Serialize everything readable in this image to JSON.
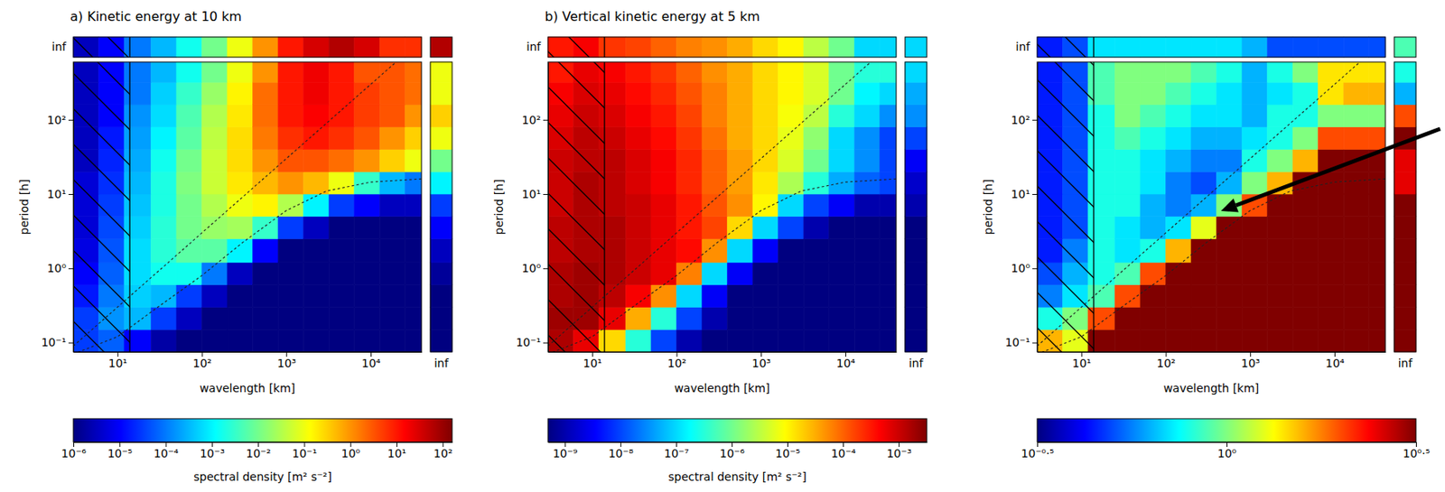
{
  "chart_data": [
    {
      "type": "heatmap",
      "title": "a) Kinetic energy at 10 km",
      "xlabel": "wavelength [km]",
      "ylabel": "period [h]",
      "log": true,
      "xlim": [
        3,
        40000
      ],
      "ylim": [
        0.075,
        600
      ],
      "xticks": [
        {
          "value": 10,
          "label": "10¹"
        },
        {
          "value": 100,
          "label": "10²"
        },
        {
          "value": 1000,
          "label": "10³"
        },
        {
          "value": 10000,
          "label": "10⁴"
        }
      ],
      "yticks": [
        {
          "value": 0.1,
          "label": "10⁻¹"
        },
        {
          "value": 1,
          "label": "10⁰"
        },
        {
          "value": 10,
          "label": "10¹"
        },
        {
          "value": 100,
          "label": "10²"
        }
      ],
      "xbins": [
        3,
        6,
        12,
        25,
        50,
        100,
        200,
        400,
        800,
        1600,
        3200,
        6400,
        12800,
        25600,
        40000
      ],
      "ybins": [
        0.075,
        0.15,
        0.3,
        0.6,
        1.2,
        2.5,
        5,
        10,
        20,
        40,
        80,
        160,
        320,
        600
      ],
      "values": [
        [
          3.2e-05,
          6.3e-05,
          1e-05,
          2e-06,
          1e-06,
          1e-06,
          1e-06,
          1e-06,
          1e-06,
          1e-06,
          1e-06,
          1e-06,
          1e-06,
          1e-06
        ],
        [
          3.2e-05,
          0.00016,
          0.00032,
          3.2e-05,
          3.2e-06,
          1e-06,
          1e-06,
          1e-06,
          1e-06,
          1e-06,
          1e-06,
          1e-06,
          1e-06,
          1e-06
        ],
        [
          1.6e-05,
          0.0001,
          0.0005,
          0.00032,
          3.2e-05,
          3.2e-06,
          1e-06,
          1e-06,
          1e-06,
          1e-06,
          1e-06,
          1e-06,
          1e-06,
          1e-06
        ],
        [
          1e-05,
          6.3e-05,
          0.00063,
          0.0016,
          0.0016,
          0.0001,
          3.2e-06,
          1e-06,
          1e-06,
          1e-06,
          1e-06,
          1e-06,
          1e-06,
          1e-06
        ],
        [
          6.3e-06,
          5e-05,
          0.00063,
          0.0025,
          0.0063,
          0.0063,
          0.001,
          1e-05,
          1e-06,
          1e-06,
          1e-06,
          1e-06,
          1e-06,
          1e-06
        ],
        [
          5e-06,
          4e-05,
          0.0005,
          0.0025,
          0.01,
          0.02,
          0.025,
          0.0032,
          3.2e-05,
          3.2e-06,
          1e-06,
          1e-06,
          1e-06,
          1e-06
        ],
        [
          5e-06,
          3.2e-05,
          0.0004,
          0.002,
          0.01,
          0.032,
          0.1,
          0.16,
          0.032,
          0.001,
          3.2e-05,
          1e-05,
          3.2e-06,
          3.2e-06
        ],
        [
          5e-06,
          2.5e-05,
          0.00032,
          0.002,
          0.0126,
          0.05,
          0.2,
          0.5,
          1,
          0.5,
          0.1,
          0.0032,
          0.00032,
          0.0001
        ],
        [
          3.2e-06,
          2e-05,
          0.00025,
          0.0016,
          0.01,
          0.05,
          0.25,
          1,
          3.2,
          3.2,
          2,
          1,
          0.32,
          0.1
        ],
        [
          3.2e-06,
          1.6e-05,
          0.0002,
          0.001,
          0.0063,
          0.04,
          0.25,
          1.6,
          6.3,
          10,
          6.3,
          3.2,
          1,
          0.32
        ],
        [
          3.2e-06,
          1e-05,
          0.00016,
          0.00063,
          0.005,
          0.032,
          0.2,
          2,
          10,
          16,
          10,
          5,
          3.2,
          1
        ],
        [
          3.2e-06,
          1e-05,
          0.0001,
          0.0005,
          0.0032,
          0.02,
          0.16,
          2,
          10,
          20,
          10,
          5,
          3.2,
          2
        ],
        [
          3.2e-06,
          1e-05,
          0.0001,
          0.00032,
          0.0016,
          0.01,
          0.1,
          1,
          10,
          20,
          10,
          3.2,
          3.2,
          2
        ]
      ],
      "inf_label": "inf",
      "inf_row": [
        3.2e-06,
        1e-05,
        0.0001,
        0.00032,
        0.0016,
        0.01,
        0.1,
        1,
        10,
        32,
        63,
        32,
        6.3,
        6.3
      ],
      "inf_column": [
        1e-06,
        1e-06,
        1e-06,
        1.6e-06,
        3.2e-06,
        1e-05,
        3.2e-05,
        0.001,
        0.01,
        0.1,
        0.32,
        0.1,
        0.1
      ],
      "inf_corner": 63,
      "cutoff_wavelength": 14,
      "lines": [
        {
          "x": [
            3,
            40000
          ],
          "y": [
            0.09,
            1200
          ],
          "line_style": "dashed"
        },
        {
          "x": [
            3,
            10,
            30,
            100,
            300,
            1000,
            3000,
            10000,
            40000
          ],
          "y": [
            0.07,
            0.12,
            0.3,
            0.8,
            2.2,
            6,
            11,
            14.5,
            16
          ],
          "line_style": "dashed"
        }
      ],
      "colorbar": {
        "range": [
          1e-06,
          160
        ],
        "ticks": [
          {
            "value": 1e-06,
            "label": "10⁻⁶"
          },
          {
            "value": 1e-05,
            "label": "10⁻⁵"
          },
          {
            "value": 0.0001,
            "label": "10⁻⁴"
          },
          {
            "value": 0.001,
            "label": "10⁻³"
          },
          {
            "value": 0.01,
            "label": "10⁻²"
          },
          {
            "value": 0.1,
            "label": "10⁻¹"
          },
          {
            "value": 1,
            "label": "10⁰"
          },
          {
            "value": 10,
            "label": "10¹"
          },
          {
            "value": 100,
            "label": "10²"
          }
        ],
        "label": "spectral density [m² s⁻²]"
      }
    },
    {
      "type": "heatmap",
      "title": "b) Vertical kinetic energy at 5 km",
      "xlabel": "wavelength [km]",
      "ylabel": "period [h]",
      "log": true,
      "xlim": [
        3,
        40000
      ],
      "ylim": [
        0.075,
        600
      ],
      "xticks": [
        {
          "value": 10,
          "label": "10¹"
        },
        {
          "value": 100,
          "label": "10²"
        },
        {
          "value": 1000,
          "label": "10³"
        },
        {
          "value": 10000,
          "label": "10⁴"
        }
      ],
      "yticks": [
        {
          "value": 0.1,
          "label": "10⁻¹"
        },
        {
          "value": 1,
          "label": "10⁰"
        },
        {
          "value": 10,
          "label": "10¹"
        },
        {
          "value": 100,
          "label": "10²"
        }
      ],
      "xbins": [
        3,
        6,
        12,
        25,
        50,
        100,
        200,
        400,
        800,
        1600,
        3200,
        6400,
        12800,
        25600,
        40000
      ],
      "ybins": [
        0.075,
        0.15,
        0.3,
        0.6,
        1.2,
        2.5,
        5,
        10,
        20,
        40,
        80,
        160,
        320,
        600
      ],
      "values": [
        [
          0.0016,
          0.00063,
          1.6e-05,
          3.2e-07,
          1e-08,
          1e-09,
          5e-10,
          5e-10,
          5e-10,
          5e-10,
          5e-10,
          5e-10,
          5e-10,
          5e-10
        ],
        [
          0.002,
          0.002,
          0.00063,
          3.2e-05,
          3.2e-07,
          1e-08,
          1e-09,
          5e-10,
          5e-10,
          5e-10,
          5e-10,
          5e-10,
          5e-10,
          5e-10
        ],
        [
          0.0016,
          0.002,
          0.00126,
          0.0005,
          5e-05,
          1e-07,
          3.2e-09,
          5e-10,
          5e-10,
          5e-10,
          5e-10,
          5e-10,
          5e-10,
          5e-10
        ],
        [
          0.0016,
          0.002,
          0.0016,
          0.001,
          0.00063,
          6.3e-05,
          1e-07,
          3.2e-09,
          5e-10,
          5e-10,
          5e-10,
          5e-10,
          5e-10,
          5e-10
        ],
        [
          0.00126,
          0.0016,
          0.0016,
          0.001,
          0.00063,
          0.0004,
          5e-05,
          1e-07,
          3.2e-09,
          5e-10,
          5e-10,
          5e-10,
          5e-10,
          5e-10
        ],
        [
          0.00126,
          0.0016,
          0.0016,
          0.001,
          0.00063,
          0.00032,
          0.00016,
          1.6e-05,
          1e-07,
          1e-08,
          1e-09,
          5e-10,
          5e-10,
          5e-10
        ],
        [
          0.001,
          0.0016,
          0.00126,
          0.001,
          0.00063,
          0.00032,
          0.000126,
          5e-05,
          1e-05,
          1e-07,
          1e-08,
          3.2e-09,
          1e-09,
          1e-09
        ],
        [
          0.001,
          0.0016,
          0.00126,
          0.0008,
          0.0005,
          0.00025,
          0.0001,
          4e-05,
          1.26e-05,
          2.5e-06,
          3.2e-07,
          5e-08,
          1.6e-08,
          1e-08
        ],
        [
          0.001,
          0.00126,
          0.00126,
          0.0008,
          0.0005,
          0.00025,
          0.0001,
          4e-05,
          1.6e-05,
          5e-06,
          1e-06,
          1e-07,
          3.2e-08,
          1e-08
        ],
        [
          0.0008,
          0.00126,
          0.001,
          0.00063,
          0.0004,
          0.0002,
          8e-05,
          3.2e-05,
          1.6e-05,
          6.3e-06,
          1.6e-06,
          1e-07,
          3.2e-08,
          1e-08
        ],
        [
          0.00063,
          0.001,
          0.0008,
          0.0005,
          0.00032,
          0.00016,
          6.3e-05,
          3.2e-05,
          1.6e-05,
          8e-06,
          3.2e-06,
          3.2e-07,
          1e-07,
          3.2e-08
        ],
        [
          0.0005,
          0.0008,
          0.00063,
          0.0004,
          0.00025,
          0.000126,
          6.3e-05,
          3.2e-05,
          1.6e-05,
          1e-05,
          5e-06,
          1e-06,
          1.6e-07,
          1e-07
        ],
        [
          0.00032,
          0.00063,
          0.0005,
          0.00032,
          0.0002,
          0.0001,
          5e-05,
          3.2e-05,
          1.6e-05,
          1e-05,
          5e-06,
          1e-06,
          3.2e-07,
          3.2e-07
        ]
      ],
      "inf_label": "inf",
      "inf_row": [
        0.00032,
        0.0005,
        0.0002,
        0.00016,
        0.0001,
        6.3e-05,
        5e-05,
        3.2e-05,
        1.6e-05,
        1e-05,
        3.2e-06,
        1e-06,
        1e-07,
        1e-07
      ],
      "inf_column": [
        5e-10,
        5e-10,
        5e-10,
        5e-10,
        5e-10,
        5e-10,
        1e-09,
        1.6e-09,
        3.2e-09,
        1e-08,
        3.2e-08,
        5e-08,
        1e-07
      ],
      "inf_corner": 1e-07,
      "cutoff_wavelength": 14,
      "lines": [
        {
          "x": [
            3,
            40000
          ],
          "y": [
            0.09,
            1200
          ],
          "line_style": "dashed"
        },
        {
          "x": [
            3,
            10,
            30,
            100,
            300,
            1000,
            3000,
            10000,
            40000
          ],
          "y": [
            0.07,
            0.12,
            0.3,
            0.8,
            2.2,
            6,
            11,
            14.5,
            16
          ],
          "line_style": "dashed"
        }
      ],
      "colorbar": {
        "range": [
          5e-10,
          0.0032
        ],
        "ticks": [
          {
            "value": 1e-09,
            "label": "10⁻⁹"
          },
          {
            "value": 1e-08,
            "label": "10⁻⁸"
          },
          {
            "value": 1e-07,
            "label": "10⁻⁷"
          },
          {
            "value": 1e-06,
            "label": "10⁻⁶"
          },
          {
            "value": 1e-05,
            "label": "10⁻⁵"
          },
          {
            "value": 0.0001,
            "label": "10⁻⁴"
          },
          {
            "value": 0.001,
            "label": "10⁻³"
          }
        ],
        "label": "spectral density [m² s⁻²]"
      }
    },
    {
      "type": "heatmap",
      "xlabel": "wavelength [km]",
      "ylabel": "period [h]",
      "log": true,
      "xlim": [
        3,
        40000
      ],
      "ylim": [
        0.075,
        600
      ],
      "xticks": [
        {
          "value": 10,
          "label": "10¹"
        },
        {
          "value": 100,
          "label": "10²"
        },
        {
          "value": 1000,
          "label": "10³"
        },
        {
          "value": 10000,
          "label": "10⁴"
        }
      ],
      "yticks": [
        {
          "value": 0.1,
          "label": "10⁻¹"
        },
        {
          "value": 1,
          "label": "10⁰"
        },
        {
          "value": 10,
          "label": "10¹"
        },
        {
          "value": 100,
          "label": "10²"
        }
      ],
      "xbins": [
        3,
        6,
        12,
        25,
        50,
        100,
        200,
        400,
        800,
        1600,
        3200,
        6400,
        12800,
        25600,
        40000
      ],
      "ybins": [
        0.075,
        0.15,
        0.3,
        0.6,
        1.2,
        2.5,
        5,
        10,
        20,
        40,
        80,
        160,
        320,
        600
      ],
      "values": [
        [
          1.58,
          1.26,
          3.16,
          3.16,
          3.16,
          3.16,
          3.16,
          3.16,
          3.16,
          3.16,
          3.16,
          3.16,
          3.16,
          3.16
        ],
        [
          0.794,
          1,
          2,
          3.16,
          3.16,
          3.16,
          3.16,
          3.16,
          3.16,
          3.16,
          3.16,
          3.16,
          3.16,
          3.16
        ],
        [
          0.562,
          0.708,
          0.891,
          2,
          3.16,
          3.16,
          3.16,
          3.16,
          3.16,
          3.16,
          3.16,
          3.16,
          3.16,
          3.16
        ],
        [
          0.501,
          0.631,
          0.794,
          0.891,
          2,
          3.16,
          3.16,
          3.16,
          3.16,
          3.16,
          3.16,
          3.16,
          3.16,
          3.16
        ],
        [
          0.447,
          0.562,
          0.794,
          0.708,
          0.794,
          1.58,
          3.16,
          3.16,
          3.16,
          3.16,
          3.16,
          3.16,
          3.16,
          3.16
        ],
        [
          0.447,
          0.501,
          0.794,
          0.708,
          0.631,
          0.708,
          1.26,
          3.16,
          3.16,
          3.16,
          3.16,
          3.16,
          3.16,
          3.16
        ],
        [
          0.447,
          0.501,
          0.794,
          0.794,
          0.631,
          0.562,
          0.631,
          1,
          2,
          3.16,
          3.16,
          3.16,
          3.16,
          3.16
        ],
        [
          0.447,
          0.501,
          0.794,
          0.794,
          0.708,
          0.562,
          0.501,
          0.631,
          1,
          1.58,
          3.16,
          3.16,
          3.16,
          3.16
        ],
        [
          0.447,
          0.501,
          0.794,
          0.794,
          0.708,
          0.631,
          0.562,
          0.562,
          0.794,
          1,
          1.58,
          3.16,
          3.16,
          3.16
        ],
        [
          0.447,
          0.501,
          0.794,
          0.891,
          0.794,
          0.708,
          0.631,
          0.631,
          0.708,
          0.794,
          1,
          2,
          2,
          2
        ],
        [
          0.447,
          0.501,
          0.794,
          1,
          0.891,
          0.794,
          0.708,
          0.708,
          0.631,
          0.794,
          0.794,
          1,
          1,
          1
        ],
        [
          0.447,
          0.501,
          0.891,
          1,
          1,
          0.891,
          0.794,
          0.708,
          0.631,
          0.708,
          0.794,
          1.41,
          1.58,
          1.58
        ],
        [
          0.447,
          0.501,
          0.891,
          1,
          1,
          1,
          0.891,
          0.794,
          0.631,
          0.794,
          1,
          1.41,
          1.41,
          1.41
        ]
      ],
      "inf_label": "inf",
      "inf_row": [
        0.447,
        0.501,
        0.708,
        0.708,
        0.708,
        0.708,
        0.708,
        0.708,
        0.631,
        0.501,
        0.501,
        0.501,
        0.501,
        0.501
      ],
      "inf_column": [
        3.16,
        3.16,
        3.16,
        3.16,
        3.16,
        3.16,
        3.16,
        2.51,
        2.51,
        3.16,
        2,
        0.631,
        0.794
      ],
      "inf_corner": 0.891,
      "cutoff_wavelength": 14,
      "lines": [
        {
          "x": [
            3,
            40000
          ],
          "y": [
            0.09,
            1200
          ],
          "line_style": "dashed"
        },
        {
          "x": [
            3,
            10,
            30,
            100,
            300,
            1000,
            3000,
            10000,
            40000
          ],
          "y": [
            0.07,
            0.12,
            0.3,
            0.8,
            2.2,
            6,
            11,
            14.5,
            16
          ],
          "line_style": "dashed"
        }
      ],
      "colorbar": {
        "range": [
          0.316227766,
          3.16227766
        ],
        "ticks": [
          {
            "value": 0.316227766,
            "label": "10⁻⁰·⁵"
          },
          {
            "value": 1,
            "label": "10⁰"
          },
          {
            "value": 3.16227766,
            "label": "10⁰·⁵"
          }
        ]
      }
    }
  ]
}
